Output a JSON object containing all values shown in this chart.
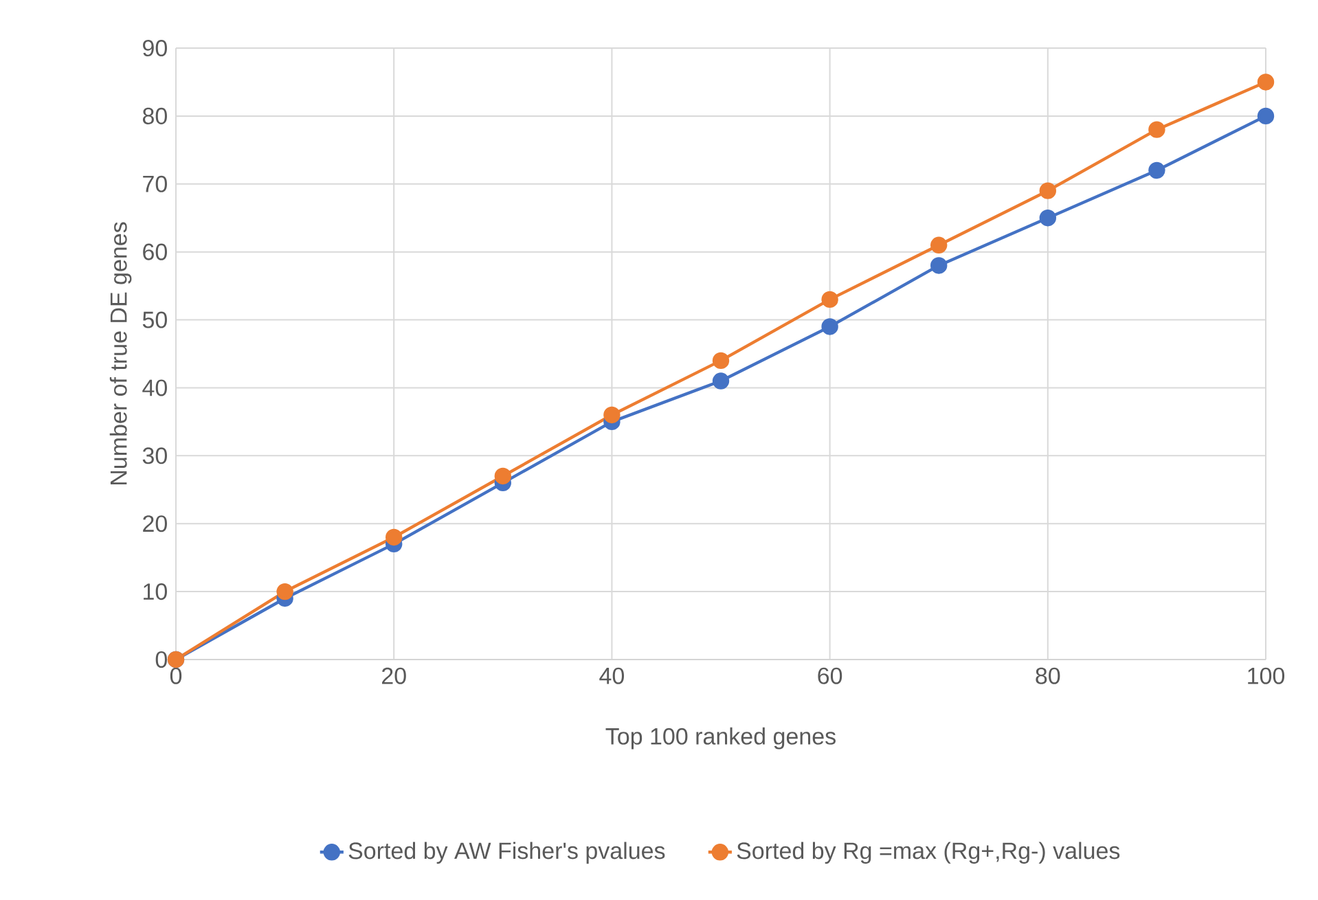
{
  "chart_data": {
    "type": "line",
    "xlabel": "Top 100 ranked genes",
    "ylabel": "Number of true DE genes",
    "x": [
      0,
      10,
      20,
      30,
      40,
      50,
      60,
      70,
      80,
      90,
      100
    ],
    "series": [
      {
        "name": "Sorted by AW Fisher's pvalues",
        "color": "#4472c4",
        "values": [
          0,
          9,
          17,
          26,
          35,
          41,
          49,
          58,
          65,
          72,
          80
        ]
      },
      {
        "name": "Sorted by Rg =max (Rg+,Rg-) values",
        "color": "#ed7d31",
        "values": [
          0,
          10,
          18,
          27,
          36,
          44,
          53,
          61,
          69,
          78,
          85
        ]
      }
    ],
    "xlim": [
      0,
      100
    ],
    "xticks": [
      0,
      20,
      40,
      60,
      80,
      100
    ],
    "ylim": [
      0,
      90
    ],
    "yticks": [
      0,
      10,
      20,
      30,
      40,
      50,
      60,
      70,
      80,
      90
    ],
    "grid": true,
    "legend": "bottom",
    "marker": "circle",
    "line_style": "solid"
  }
}
